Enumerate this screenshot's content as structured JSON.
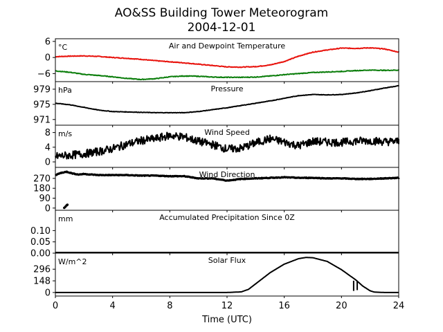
{
  "figure": {
    "title_line1": "AO&SS Building Tower Meteorogram",
    "title_line2": "2004-12-01"
  },
  "chart_data": [
    {
      "type": "line",
      "title": "Air and Dewpoint Temperature",
      "unit_label": "°C",
      "ylim": [
        -9,
        7
      ],
      "yticks": [
        6,
        0,
        -6
      ],
      "ytick_labels": [
        "6",
        "0",
        "−6"
      ],
      "x": [
        0,
        1,
        2,
        3,
        4,
        5,
        6,
        7,
        8,
        9,
        10,
        11,
        12,
        13,
        14,
        15,
        16,
        17,
        18,
        19,
        20,
        21,
        22,
        23,
        24
      ],
      "series": [
        {
          "color": "#e8120c",
          "values": [
            0.3,
            0.5,
            0.6,
            0.4,
            0.0,
            -0.3,
            -0.7,
            -1.2,
            -1.6,
            -2.0,
            -2.5,
            -3.0,
            -3.5,
            -3.6,
            -3.4,
            -2.8,
            -1.5,
            0.5,
            2.0,
            2.8,
            3.5,
            3.4,
            3.6,
            3.2,
            2.0
          ]
        },
        {
          "color": "#0a7d0a",
          "values": [
            -5.0,
            -5.5,
            -6.3,
            -6.7,
            -7.2,
            -7.8,
            -8.2,
            -7.9,
            -7.2,
            -6.9,
            -7.0,
            -7.3,
            -7.4,
            -7.4,
            -7.3,
            -6.9,
            -6.4,
            -6.0,
            -5.6,
            -5.4,
            -5.2,
            -4.9,
            -4.7,
            -4.8,
            -4.7
          ]
        }
      ]
    },
    {
      "type": "line",
      "title": "Pressure",
      "unit_label": "hPa",
      "ylim": [
        969.5,
        981
      ],
      "yticks": [
        979,
        975,
        971
      ],
      "ytick_labels": [
        "979",
        "975",
        "971"
      ],
      "x": [
        0,
        1,
        2,
        3,
        4,
        5,
        6,
        7,
        8,
        9,
        10,
        11,
        12,
        13,
        14,
        15,
        16,
        17,
        18,
        19,
        20,
        21,
        22,
        23,
        24
      ],
      "series": [
        {
          "color": "#000000",
          "values": [
            975.3,
            974.9,
            974.2,
            973.5,
            973.1,
            973.0,
            972.9,
            972.8,
            972.8,
            972.8,
            973.1,
            973.6,
            974.1,
            974.7,
            975.3,
            975.9,
            976.6,
            977.3,
            977.6,
            977.5,
            977.6,
            978.0,
            978.6,
            979.3,
            979.9
          ]
        }
      ]
    },
    {
      "type": "line",
      "title": "Wind Speed",
      "unit_label": "m/s",
      "ylim": [
        -1.5,
        10
      ],
      "yticks": [
        8,
        4,
        0
      ],
      "ytick_labels": [
        "8",
        "4",
        "0"
      ],
      "x": [
        0,
        1,
        2,
        3,
        4,
        5,
        6,
        7,
        8,
        9,
        10,
        11,
        12,
        13,
        14,
        15,
        16,
        17,
        18,
        19,
        20,
        21,
        22,
        23,
        24
      ],
      "series": [
        {
          "color": "#000000",
          "values": [
            1.5,
            1.8,
            2.2,
            2.8,
            3.6,
            4.8,
            5.8,
            6.3,
            7.2,
            6.8,
            5.6,
            4.7,
            3.5,
            3.7,
            5.2,
            6.3,
            5.4,
            4.4,
            5.6,
            5.4,
            5.3,
            5.7,
            5.8,
            5.5,
            5.6
          ]
        }
      ]
    },
    {
      "type": "scatter",
      "title": "Wind Direction",
      "unit_label": "",
      "ylim": [
        -20,
        370
      ],
      "yticks": [
        270,
        180,
        90,
        0
      ],
      "ytick_labels": [
        "270",
        "180",
        "90",
        "0"
      ],
      "x": [
        0,
        0.4,
        0.8,
        1.2,
        1.6,
        2,
        3,
        4,
        5,
        6,
        7,
        8,
        9,
        10,
        11,
        12,
        13,
        14,
        15,
        16,
        17,
        18,
        19,
        20,
        21,
        22,
        23,
        24
      ],
      "series": [
        {
          "color": "#000000",
          "values": [
            300,
            320,
            330,
            315,
            305,
            310,
            300,
            300,
            300,
            295,
            295,
            290,
            290,
            270,
            270,
            250,
            265,
            270,
            275,
            280,
            275,
            275,
            270,
            270,
            265,
            265,
            270,
            275
          ]
        }
      ]
    },
    {
      "type": "line",
      "title": "Accumulated Precipitation Since 0Z",
      "unit_label": "mm",
      "ylim": [
        0,
        0.19
      ],
      "yticks": [
        0.1,
        0.05,
        0.0
      ],
      "ytick_labels": [
        "0.10",
        "0.05",
        "0.00"
      ],
      "x": [
        0,
        24
      ],
      "series": [
        {
          "color": "#000000",
          "values": [
            0.0,
            0.0
          ]
        }
      ]
    },
    {
      "type": "line",
      "title": "Solar Flux",
      "unit_label": "W/m^2",
      "ylim": [
        -45,
        500
      ],
      "yticks": [
        296,
        148,
        0
      ],
      "ytick_labels": [
        "296",
        "148",
        "0"
      ],
      "xlabel": "Time (UTC)",
      "xlim": [
        0,
        24
      ],
      "xticks": [
        0,
        4,
        8,
        12,
        16,
        20,
        24
      ],
      "x": [
        0,
        12,
        13,
        13.5,
        14,
        15,
        16,
        17,
        17.5,
        18,
        19,
        20,
        20.5,
        21,
        21.5,
        22,
        22.3,
        23,
        24
      ],
      "series": [
        {
          "color": "#000000",
          "values": [
            0,
            0,
            8,
            40,
            110,
            250,
            360,
            430,
            445,
            442,
            395,
            290,
            225,
            160,
            80,
            22,
            5,
            0,
            0
          ]
        }
      ]
    }
  ]
}
